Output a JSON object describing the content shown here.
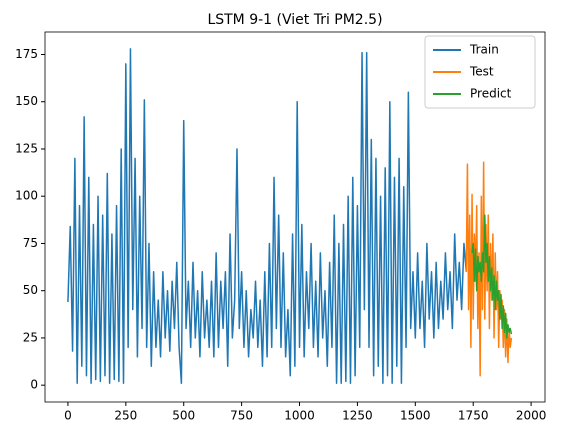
{
  "chart_data": {
    "type": "line",
    "title": "LSTM 9-1 (Viet Tri PM2.5)",
    "xlim": [
      -99,
      2060
    ],
    "ylim": [
      -8.9,
      186.9
    ],
    "xticks": [
      0,
      250,
      500,
      750,
      1000,
      1250,
      1500,
      1750,
      2000
    ],
    "yticks": [
      0,
      25,
      50,
      75,
      100,
      125,
      150,
      175
    ],
    "legend": "upper right",
    "series": [
      {
        "name": "Train",
        "color": "#1f77b4",
        "x": [
          0,
          10,
          20,
          30,
          40,
          50,
          60,
          70,
          80,
          90,
          100,
          110,
          120,
          130,
          140,
          150,
          160,
          170,
          180,
          190,
          200,
          210,
          220,
          230,
          240,
          250,
          260,
          270,
          280,
          290,
          300,
          310,
          320,
          330,
          340,
          350,
          360,
          370,
          380,
          390,
          400,
          410,
          420,
          430,
          440,
          450,
          460,
          470,
          480,
          490,
          500,
          510,
          520,
          530,
          540,
          550,
          560,
          570,
          580,
          590,
          600,
          610,
          620,
          630,
          640,
          650,
          660,
          670,
          680,
          690,
          700,
          710,
          720,
          730,
          740,
          750,
          760,
          770,
          780,
          790,
          800,
          810,
          820,
          830,
          840,
          850,
          860,
          870,
          880,
          890,
          900,
          910,
          920,
          930,
          940,
          950,
          960,
          970,
          980,
          990,
          1000,
          1010,
          1020,
          1030,
          1040,
          1050,
          1060,
          1070,
          1080,
          1090,
          1100,
          1110,
          1120,
          1130,
          1140,
          1150,
          1160,
          1170,
          1180,
          1190,
          1200,
          1210,
          1220,
          1230,
          1240,
          1250,
          1260,
          1270,
          1280,
          1290,
          1300,
          1310,
          1320,
          1330,
          1340,
          1350,
          1360,
          1370,
          1380,
          1390,
          1400,
          1410,
          1420,
          1430,
          1440,
          1450,
          1460,
          1470,
          1480,
          1490,
          1500,
          1510,
          1520,
          1530,
          1540,
          1550,
          1560,
          1570,
          1580,
          1590,
          1600,
          1610,
          1620,
          1630,
          1640,
          1650,
          1660,
          1670,
          1680,
          1690,
          1700,
          1710,
          1720
        ],
        "values": [
          44,
          84,
          18,
          120,
          1,
          95,
          10,
          142,
          5,
          110,
          1,
          85,
          3,
          100,
          2,
          90,
          5,
          112,
          1,
          80,
          3,
          95,
          2,
          125,
          1,
          170,
          20,
          178,
          40,
          120,
          15,
          100,
          30,
          151,
          20,
          75,
          10,
          60,
          20,
          45,
          15,
          60,
          25,
          50,
          18,
          55,
          30,
          65,
          20,
          1,
          140,
          30,
          55,
          20,
          65,
          25,
          50,
          15,
          60,
          25,
          45,
          20,
          55,
          15,
          70,
          20,
          55,
          30,
          60,
          10,
          80,
          25,
          45,
          125,
          30,
          60,
          20,
          50,
          15,
          40,
          25,
          55,
          20,
          45,
          10,
          60,
          15,
          75,
          20,
          110,
          30,
          90,
          20,
          70,
          15,
          40,
          5,
          80,
          10,
          150,
          20,
          85,
          15,
          60,
          30,
          75,
          20,
          55,
          15,
          70,
          25,
          50,
          10,
          65,
          20,
          90,
          1,
          75,
          1,
          85,
          2,
          100,
          1,
          110,
          5,
          95,
          20,
          176,
          40,
          176,
          20,
          130,
          5,
          120,
          10,
          100,
          1,
          115,
          5,
          150,
          1,
          110,
          10,
          120,
          1,
          105,
          20,
          155,
          30,
          60,
          25,
          70,
          30,
          55,
          20,
          75,
          35,
          60,
          25,
          65,
          30,
          55,
          35,
          70,
          40,
          60,
          30,
          80,
          45,
          65,
          40,
          75,
          60
        ]
      },
      {
        "name": "Test",
        "color": "#ff7f0e",
        "x": [
          1720,
          1725,
          1730,
          1735,
          1740,
          1745,
          1750,
          1755,
          1760,
          1765,
          1770,
          1775,
          1780,
          1785,
          1790,
          1795,
          1800,
          1805,
          1810,
          1815,
          1820,
          1825,
          1830,
          1835,
          1840,
          1845,
          1850,
          1855,
          1860,
          1865,
          1870,
          1875,
          1880,
          1885,
          1890,
          1895,
          1900,
          1905,
          1910,
          1915
        ],
        "values": [
          60,
          117,
          40,
          90,
          20,
          101,
          35,
          80,
          55,
          95,
          30,
          70,
          5,
          100,
          40,
          118,
          35,
          85,
          50,
          90,
          30,
          75,
          45,
          80,
          25,
          70,
          40,
          60,
          20,
          50,
          35,
          45,
          20,
          40,
          15,
          35,
          12,
          30,
          20,
          25
        ]
      },
      {
        "name": "Predict",
        "color": "#2ca02c",
        "x": [
          1745,
          1750,
          1755,
          1760,
          1765,
          1770,
          1775,
          1780,
          1785,
          1790,
          1795,
          1800,
          1805,
          1810,
          1815,
          1820,
          1825,
          1830,
          1835,
          1840,
          1845,
          1850,
          1855,
          1860,
          1865,
          1870,
          1875,
          1880,
          1885,
          1890,
          1895,
          1900,
          1905,
          1910,
          1915
        ],
        "values": [
          70,
          75,
          55,
          72,
          50,
          68,
          60,
          65,
          55,
          70,
          60,
          90,
          65,
          75,
          55,
          68,
          50,
          62,
          45,
          58,
          40,
          55,
          45,
          50,
          35,
          48,
          30,
          42,
          28,
          38,
          25,
          32,
          28,
          30,
          27
        ]
      }
    ]
  }
}
